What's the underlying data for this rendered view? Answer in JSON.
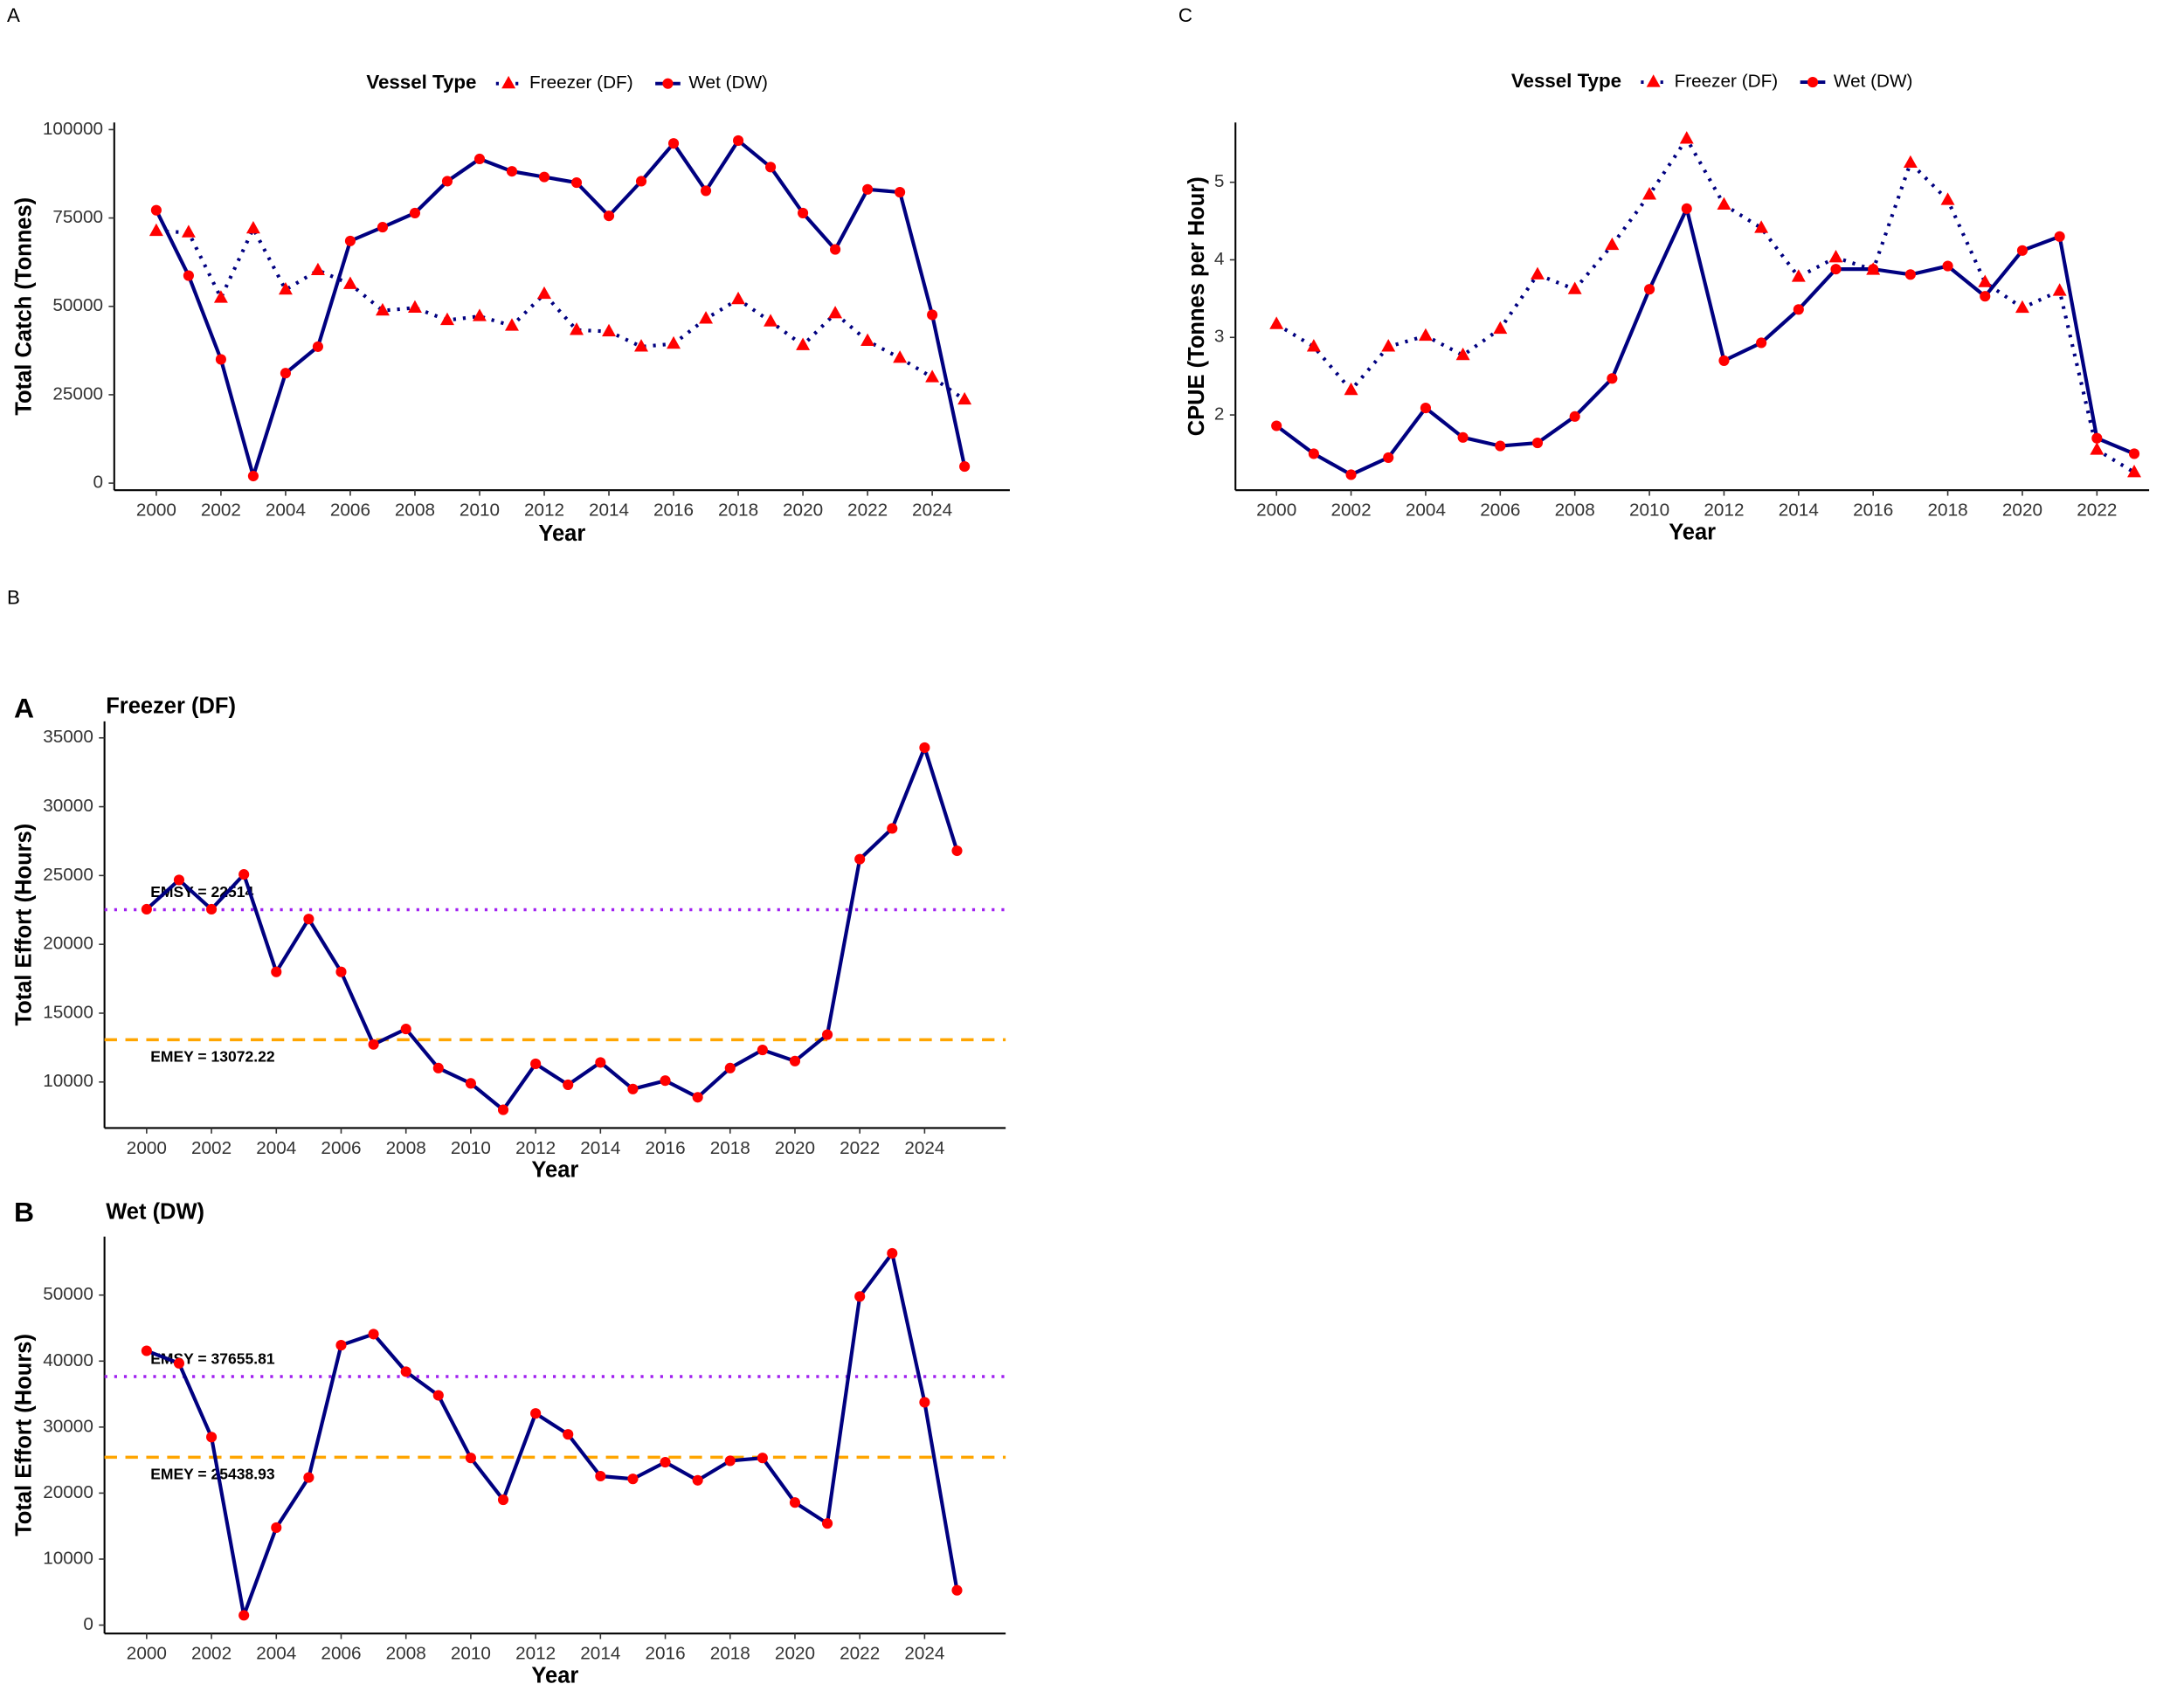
{
  "panel_labels": [
    "A",
    "C",
    "B"
  ],
  "chart_data": [
    {
      "type": "line",
      "y_label": "Total Catch (Tonnes)",
      "x_label": "Year",
      "legend_title": "Vessel Type",
      "legend": "top",
      "x": [
        2000,
        2001,
        2002,
        2003,
        2004,
        2005,
        2006,
        2007,
        2008,
        2009,
        2010,
        2011,
        2012,
        2013,
        2014,
        2015,
        2016,
        2017,
        2018,
        2019,
        2020,
        2021,
        2022,
        2023,
        2024,
        2025
      ],
      "xlim": [
        1998.7,
        2026.4
      ],
      "xticks": [
        2000,
        2002,
        2004,
        2006,
        2008,
        2010,
        2012,
        2014,
        2016,
        2018,
        2020,
        2022,
        2024
      ],
      "ylim": [
        -2000,
        102000
      ],
      "yticks": [
        0,
        25000,
        50000,
        75000,
        100000
      ],
      "series": [
        {
          "name": "Freezer (DF)",
          "color": "#000080",
          "marker_color": "#ff0000",
          "marker": "triangle",
          "linestyle": "dotted",
          "values": [
            71300,
            70900,
            52400,
            72000,
            54700,
            60200,
            56300,
            48800,
            49600,
            46100,
            47200,
            44500,
            53500,
            43300,
            42900,
            38600,
            39400,
            46500,
            52000,
            45700,
            39000,
            48000,
            40200,
            35400,
            29900,
            23600
          ]
        },
        {
          "name": "Wet (DW)",
          "color": "#000080",
          "marker_color": "#ff0000",
          "marker": "circle",
          "linestyle": "solid",
          "values": [
            77200,
            58700,
            35000,
            2000,
            31100,
            38600,
            68500,
            72400,
            76400,
            85400,
            91700,
            88200,
            86600,
            85000,
            75600,
            85400,
            96100,
            82700,
            96900,
            89400,
            76400,
            66100,
            83100,
            82300,
            47600,
            4700
          ]
        }
      ]
    },
    {
      "type": "line",
      "y_label": "CPUE (Tonnes per Hour)",
      "x_label": "Year",
      "legend_title": "Vessel Type",
      "legend": "top",
      "x": [
        2000,
        2001,
        2002,
        2003,
        2004,
        2005,
        2006,
        2007,
        2008,
        2009,
        2010,
        2011,
        2012,
        2013,
        2014,
        2015,
        2016,
        2017,
        2018,
        2019,
        2020,
        2021,
        2022,
        2023
      ],
      "xlim": [
        1998.9,
        2023.4
      ],
      "xticks": [
        2000,
        2002,
        2004,
        2006,
        2008,
        2010,
        2012,
        2014,
        2016,
        2018,
        2020,
        2022
      ],
      "ylim": [
        1.03,
        5.77
      ],
      "yticks": [
        2,
        3,
        4,
        5
      ],
      "series": [
        {
          "name": "Freezer (DF)",
          "color": "#000080",
          "marker_color": "#ff0000",
          "marker": "triangle",
          "linestyle": "dotted",
          "values": [
            3.17,
            2.88,
            2.32,
            2.88,
            3.02,
            2.77,
            3.11,
            3.81,
            3.62,
            4.19,
            4.84,
            5.56,
            4.71,
            4.41,
            3.78,
            4.03,
            3.87,
            5.25,
            4.77,
            3.71,
            3.38,
            3.6,
            1.55,
            1.26
          ]
        },
        {
          "name": "Wet (DW)",
          "color": "#000080",
          "marker_color": "#ff0000",
          "marker": "circle",
          "linestyle": "solid",
          "values": [
            1.86,
            1.5,
            1.23,
            1.45,
            2.09,
            1.71,
            1.6,
            1.64,
            1.98,
            2.47,
            3.62,
            4.66,
            2.7,
            2.93,
            3.36,
            3.88,
            3.88,
            3.81,
            3.92,
            3.53,
            4.12,
            4.3,
            1.7,
            1.5
          ]
        }
      ]
    },
    {
      "type": "line",
      "tag": "A",
      "subtitle": "Freezer (DF)",
      "y_label": "Total Effort (Hours)",
      "x_label": "Year",
      "x": [
        2000,
        2001,
        2002,
        2003,
        2004,
        2005,
        2006,
        2007,
        2008,
        2009,
        2010,
        2011,
        2012,
        2013,
        2014,
        2015,
        2016,
        2017,
        2018,
        2019,
        2020,
        2021,
        2022,
        2023,
        2024,
        2025
      ],
      "xlim": [
        1998.7,
        2026.5
      ],
      "xticks": [
        2000,
        2002,
        2004,
        2006,
        2008,
        2010,
        2012,
        2014,
        2016,
        2018,
        2020,
        2022,
        2024
      ],
      "ylim": [
        6660,
        36200
      ],
      "yticks": [
        10000,
        15000,
        20000,
        25000,
        30000,
        35000
      ],
      "color": "#000080",
      "marker_color": "#ff0000",
      "values": [
        22550,
        24680,
        22550,
        25080,
        18000,
        21840,
        18000,
        12730,
        13850,
        11010,
        9900,
        7980,
        11320,
        9800,
        11420,
        9490,
        10100,
        8890,
        11010,
        12330,
        11520,
        13440,
        26190,
        28420,
        34290,
        26800
      ],
      "hlines": [
        {
          "value": 22514,
          "label": "EMSY = 22514",
          "color": "#a020f0",
          "linestyle": "dotted"
        },
        {
          "value": 13072.22,
          "label": "EMEY = 13072.22",
          "color": "#ffa500",
          "linestyle": "dashed"
        }
      ]
    },
    {
      "type": "line",
      "tag": "B",
      "subtitle": "Wet (DW)",
      "y_label": "Total Effort (Hours)",
      "x_label": "Year",
      "x": [
        2000,
        2001,
        2002,
        2003,
        2004,
        2005,
        2006,
        2007,
        2008,
        2009,
        2010,
        2011,
        2012,
        2013,
        2014,
        2015,
        2016,
        2017,
        2018,
        2019,
        2020,
        2021,
        2022,
        2023,
        2024,
        2025
      ],
      "xlim": [
        1998.7,
        2026.5
      ],
      "xticks": [
        2000,
        2002,
        2004,
        2006,
        2008,
        2010,
        2012,
        2014,
        2016,
        2018,
        2020,
        2022,
        2024
      ],
      "ylim": [
        -1270,
        58860
      ],
      "yticks": [
        0,
        10000,
        20000,
        30000,
        40000,
        50000
      ],
      "color": "#000080",
      "marker_color": "#ff0000",
      "values": [
        41560,
        39660,
        28480,
        1480,
        14770,
        22360,
        42410,
        44090,
        38400,
        34810,
        25320,
        18990,
        32070,
        28900,
        22570,
        22150,
        24680,
        21940,
        24890,
        25320,
        18570,
        15400,
        49790,
        56330,
        33760,
        5270
      ],
      "hlines": [
        {
          "value": 37655.81,
          "label": "EMSY = 37655.81",
          "color": "#a020f0",
          "linestyle": "dotted"
        },
        {
          "value": 25438.93,
          "label": "EMEY = 25438.93",
          "color": "#ffa500",
          "linestyle": "dashed"
        }
      ]
    }
  ]
}
